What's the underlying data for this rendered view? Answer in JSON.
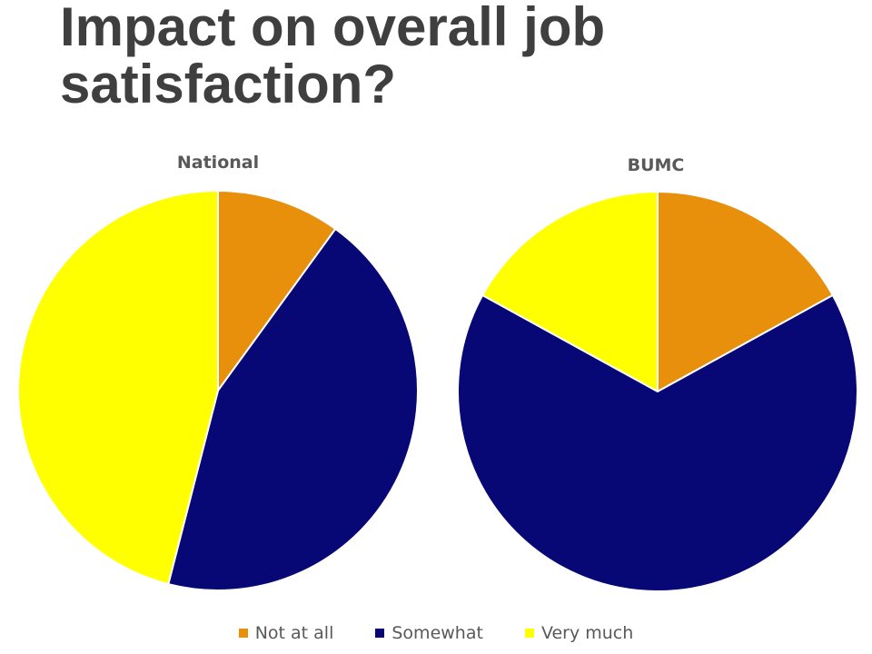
{
  "slide": {
    "title": "Impact on overall job satisfaction?"
  },
  "colors": {
    "Not at all": "#E8900C",
    "Somewhat": "#070775",
    "Very much": "#FFFF00",
    "title_text": "#3f3f3f",
    "label_text": "#595959"
  },
  "chart_data": [
    {
      "type": "pie",
      "title": "National",
      "categories": [
        "Not at all",
        "Somewhat",
        "Very much"
      ],
      "values": [
        10,
        44,
        46
      ],
      "start_angle": "12 o'clock",
      "direction": "clockwise"
    },
    {
      "type": "pie",
      "title": "BUMC",
      "categories": [
        "Not at all",
        "Somewhat",
        "Very much"
      ],
      "values": [
        17,
        66,
        17
      ],
      "start_angle": "12 o'clock",
      "direction": "clockwise"
    }
  ],
  "legend": {
    "position": "bottom",
    "items": [
      "Not at all",
      "Somewhat",
      "Very much"
    ]
  }
}
